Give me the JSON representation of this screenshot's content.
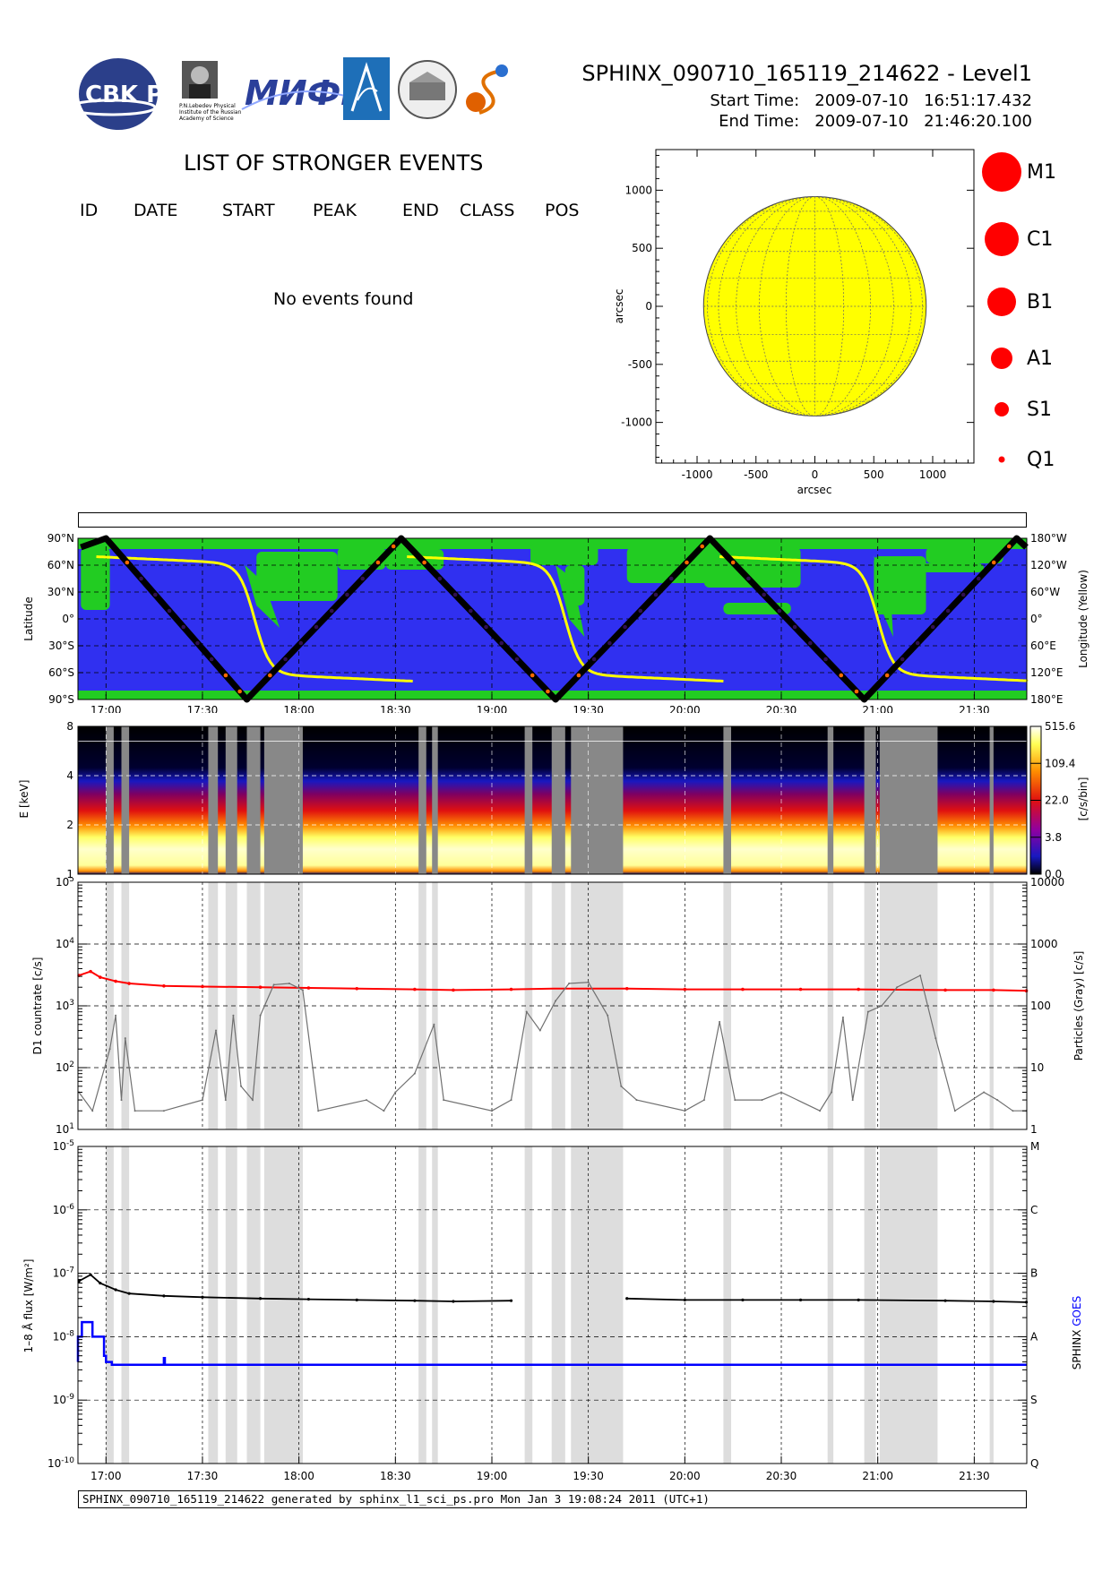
{
  "header": {
    "title": "SPHINX_090710_165119_214622 - Level1",
    "start_time": "Start Time:   2009-07-10   16:51:17.432",
    "end_time": "End Time:   2009-07-10   21:46:20.100",
    "logos": [
      "CBK PAN",
      "P.N.Lebedev Physical Institute of the Russian Academy of Science",
      "MIFI",
      "SRC",
      "Observatory seal",
      "SPHINX"
    ]
  },
  "events": {
    "title": "LIST OF STRONGER EVENTS",
    "columns": [
      "ID",
      "DATE",
      "START",
      "PEAK",
      "END",
      "CLASS",
      "POS"
    ],
    "rows": [],
    "empty_text": "No events found"
  },
  "flare_scale": [
    "M1",
    "C1",
    "B1",
    "A1",
    "S1",
    "Q1"
  ],
  "colors": {
    "sun": "#ffff00",
    "ocean": "#3030f0",
    "land": "#22cc22",
    "orbit": "#000000",
    "lon_curve": "#ffff00",
    "d1": "#ff0000",
    "particles": "#707070",
    "sphinx_flux": "#000000",
    "goes_flux": "#0000ff",
    "marker": "#ff0000",
    "gap": "#999999"
  },
  "chart_data": [
    {
      "type": "scatter",
      "title": "",
      "xlabel": "arcsec",
      "ylabel": "arcsec",
      "xlim": [
        -1350,
        1350
      ],
      "ylim": [
        -1350,
        1350
      ],
      "xticks": [
        "-1000",
        "-500",
        "0",
        "500",
        "1000"
      ],
      "yticks": [
        "1000",
        "500",
        "0",
        "-500",
        "-1000"
      ],
      "solar_radius_arcsec": 945,
      "events": []
    },
    {
      "type": "line",
      "title": "",
      "ylabel_left": "Latitude",
      "ylabel_right": "Longitude (Yellow)",
      "yticks_left": [
        "90°N",
        "60°N",
        "30°N",
        "0°",
        "30°S",
        "60°S",
        "90°S"
      ],
      "yticks_right": [
        "180°W",
        "120°W",
        "60°W",
        "0°",
        "60°E",
        "120°E",
        "180°E"
      ],
      "xlim_hours": [
        16.8547,
        21.7723
      ],
      "xticks": [
        "17:00",
        "17:30",
        "18:00",
        "18:30",
        "19:00",
        "19:30",
        "20:00",
        "20:30",
        "21:00",
        "21:30"
      ],
      "grid": true,
      "latitude_vertices_deg": [
        [
          16.87,
          80
        ],
        [
          17.0,
          90
        ],
        [
          17.73,
          -90
        ],
        [
          18.53,
          90
        ],
        [
          19.33,
          -90
        ],
        [
          20.13,
          90
        ],
        [
          20.93,
          -90
        ],
        [
          21.72,
          90
        ],
        [
          21.77,
          80
        ]
      ],
      "longitude_crossings_hours": [
        17.77,
        19.38,
        21.0
      ]
    },
    {
      "type": "heatmap",
      "title": "",
      "ylabel": "E [keV]",
      "yticks": [
        "1",
        "2",
        "4",
        "8"
      ],
      "colorbar_label": "[c/s/bin]",
      "colorbar_ticks": [
        "515.6",
        "109.4",
        "22.0",
        "3.8",
        "0.0"
      ],
      "xlim_hours": [
        16.8547,
        21.7723
      ],
      "data_gaps_hours": [
        [
          17.0,
          17.04
        ],
        [
          17.08,
          17.12
        ],
        [
          17.53,
          17.58
        ],
        [
          17.62,
          17.68
        ],
        [
          17.73,
          17.8
        ],
        [
          17.82,
          18.02
        ],
        [
          18.62,
          18.66
        ],
        [
          18.69,
          18.72
        ],
        [
          19.17,
          19.21
        ],
        [
          19.31,
          19.38
        ],
        [
          19.41,
          19.68
        ],
        [
          20.2,
          20.24
        ],
        [
          20.74,
          20.77
        ],
        [
          20.93,
          20.99
        ],
        [
          21.01,
          21.31
        ],
        [
          21.58,
          21.6
        ]
      ]
    },
    {
      "type": "line",
      "title": "",
      "ylabel_left": "D1 countrate [c/s]",
      "ylabel_right": "Particles (Gray) [c/s]",
      "ylim_left": [
        10,
        100000
      ],
      "ylim_right": [
        1,
        10000
      ],
      "yscale": "log",
      "yticks_left": [
        "10^5",
        "10^4",
        "10^3",
        "10^2",
        "10^1"
      ],
      "yticks_right": [
        "10000",
        "1000",
        "100",
        "10",
        "1"
      ],
      "xlim_hours": [
        16.8547,
        21.7723
      ],
      "grid": true,
      "series": [
        {
          "x_hours": [
            16.86,
            16.92,
            16.97,
            17.05,
            17.12,
            17.3,
            17.5,
            17.8,
            18.05,
            18.3,
            18.6,
            18.8,
            19.1,
            19.32,
            19.7,
            20.0,
            20.3,
            20.6,
            20.9,
            21.35,
            21.6,
            21.77
          ],
          "y": [
            3100,
            3600,
            2900,
            2500,
            2300,
            2100,
            2050,
            2000,
            1950,
            1900,
            1850,
            1800,
            1850,
            1900,
            1900,
            1850,
            1850,
            1850,
            1850,
            1800,
            1800,
            1750
          ]
        },
        {
          "x_hours": [
            16.86,
            16.93,
            17.02,
            17.05,
            17.08,
            17.1,
            17.15,
            17.3,
            17.5,
            17.57,
            17.62,
            17.66,
            17.7,
            17.76,
            17.8,
            17.87,
            17.95,
            18.02,
            18.1,
            18.35,
            18.44,
            18.5,
            18.6,
            18.7,
            18.75,
            19.0,
            19.1,
            19.18,
            19.25,
            19.33,
            19.4,
            19.5,
            19.6,
            19.67,
            19.75,
            20.0,
            20.1,
            20.18,
            20.26,
            20.4,
            20.5,
            20.7,
            20.76,
            20.82,
            20.87,
            20.95,
            21.02,
            21.1,
            21.22,
            21.3,
            21.4,
            21.55,
            21.62,
            21.7,
            21.77
          ],
          "y": [
            4,
            2,
            20,
            70,
            3,
            30,
            2,
            2,
            3,
            40,
            3,
            70,
            5,
            3,
            70,
            220,
            230,
            180,
            2,
            3,
            2,
            4,
            8,
            50,
            3,
            2,
            3,
            80,
            40,
            120,
            230,
            240,
            70,
            5,
            3,
            2,
            3,
            55,
            3,
            3,
            4,
            2,
            4,
            65,
            3,
            80,
            100,
            200,
            310,
            30,
            2,
            4,
            3,
            2,
            2
          ]
        }
      ]
    },
    {
      "type": "line",
      "title": "",
      "ylabel_left": "1–8 Å flux [W/m²]",
      "ylabel_right_series": [
        "SPHINX",
        "GOES"
      ],
      "ylim": [
        1e-10,
        1e-05
      ],
      "yscale": "log",
      "yticks_left": [
        "10^-5",
        "10^-6",
        "10^-7",
        "10^-8",
        "10^-9",
        "10^-10"
      ],
      "yticks_right": [
        "M",
        "C",
        "B",
        "A",
        "S",
        "Q"
      ],
      "xticks": [
        "17:00",
        "17:30",
        "18:00",
        "18:30",
        "19:00",
        "19:30",
        "20:00",
        "20:30",
        "21:00",
        "21:30"
      ],
      "xlim_hours": [
        16.8547,
        21.7723
      ],
      "grid": true,
      "series": [
        {
          "name": "SPHINX",
          "x_hours": [
            16.86,
            16.92,
            16.97,
            17.05,
            17.12,
            17.3,
            17.5,
            17.8,
            18.05,
            18.3,
            18.6,
            18.8,
            19.1,
            19.32,
            19.7,
            20.0,
            20.3,
            20.6,
            20.9,
            21.35,
            21.6,
            21.77
          ],
          "y": [
            7.5e-08,
            9.5e-08,
            7e-08,
            5.5e-08,
            4.8e-08,
            4.4e-08,
            4.2e-08,
            4e-08,
            3.9e-08,
            3.8e-08,
            3.7e-08,
            3.6e-08,
            3.7e-08,
            3.8e-08,
            4e-08,
            3.8e-08,
            3.8e-08,
            3.8e-08,
            3.8e-08,
            3.7e-08,
            3.6e-08,
            3.5e-08
          ]
        },
        {
          "name": "GOES",
          "x_hours": [
            16.8547,
            16.8547,
            16.875,
            16.875,
            16.93,
            16.93,
            16.99,
            16.99,
            17.0,
            17.0,
            17.03,
            17.03,
            17.3,
            17.3,
            17.305,
            17.305,
            21.7723
          ],
          "y": [
            4e-09,
            1e-08,
            1e-08,
            1.7e-08,
            1.7e-08,
            1e-08,
            1e-08,
            5e-09,
            5e-09,
            4e-09,
            4e-09,
            3.6e-09,
            3.6e-09,
            4.6e-09,
            4.6e-09,
            3.6e-09,
            3.6e-09
          ]
        }
      ]
    }
  ],
  "footer": {
    "text": "SPHINX_090710_165119_214622 generated by sphinx_l1_sci_ps.pro Mon Jan  3 19:08:24 2011 (UTC+1)"
  }
}
